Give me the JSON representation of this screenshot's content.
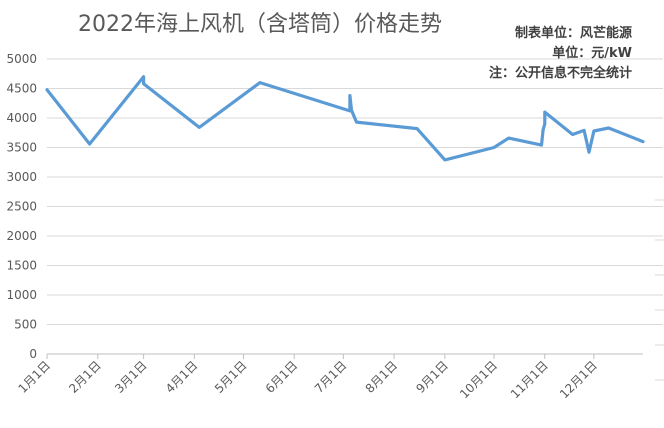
{
  "chart_data": {
    "type": "line",
    "title": "2022年海上风机（含塔筒）价格走势",
    "annotations": [
      "制表单位：风芒能源",
      "单位：元/kW",
      "注：公开信息不完全统计"
    ],
    "xlabel": "",
    "ylabel": "",
    "x_range": [
      "2022-01-01",
      "2022-12-31"
    ],
    "ylim": [
      0,
      5000
    ],
    "yticks": [
      0,
      500,
      1000,
      1500,
      2000,
      2500,
      3000,
      3500,
      4000,
      4500,
      5000
    ],
    "xtick_labels": [
      "1月1日",
      "2月1日",
      "3月1日",
      "4月1日",
      "5月1日",
      "6月1日",
      "7月1日",
      "8月1日",
      "9月1日",
      "10月1日",
      "11月1日",
      "12月1日"
    ],
    "grid": true,
    "legend": "none",
    "color": "#5b9bd5",
    "series": [
      {
        "points": [
          {
            "x": "2022-01-01",
            "y": 4480
          },
          {
            "x": "2022-01-27",
            "y": 3560
          },
          {
            "x": "2022-03-01",
            "y": 4700
          },
          {
            "x": "2022-03-01",
            "y": 4580
          },
          {
            "x": "2022-04-04",
            "y": 3840
          },
          {
            "x": "2022-05-11",
            "y": 4600
          },
          {
            "x": "2022-07-05",
            "y": 4120
          },
          {
            "x": "2022-07-05",
            "y": 4380
          },
          {
            "x": "2022-07-06",
            "y": 4130
          },
          {
            "x": "2022-07-09",
            "y": 3930
          },
          {
            "x": "2022-08-15",
            "y": 3820
          },
          {
            "x": "2022-09-01",
            "y": 3290
          },
          {
            "x": "2022-10-01",
            "y": 3500
          },
          {
            "x": "2022-10-10",
            "y": 3660
          },
          {
            "x": "2022-10-30",
            "y": 3540
          },
          {
            "x": "2022-10-31",
            "y": 3800
          },
          {
            "x": "2022-11-01",
            "y": 3900
          },
          {
            "x": "2022-11-01",
            "y": 4100
          },
          {
            "x": "2022-11-18",
            "y": 3720
          },
          {
            "x": "2022-11-25",
            "y": 3790
          },
          {
            "x": "2022-11-28",
            "y": 3420
          },
          {
            "x": "2022-12-01",
            "y": 3780
          },
          {
            "x": "2022-12-10",
            "y": 3830
          },
          {
            "x": "2022-12-31",
            "y": 3600
          }
        ]
      }
    ]
  }
}
